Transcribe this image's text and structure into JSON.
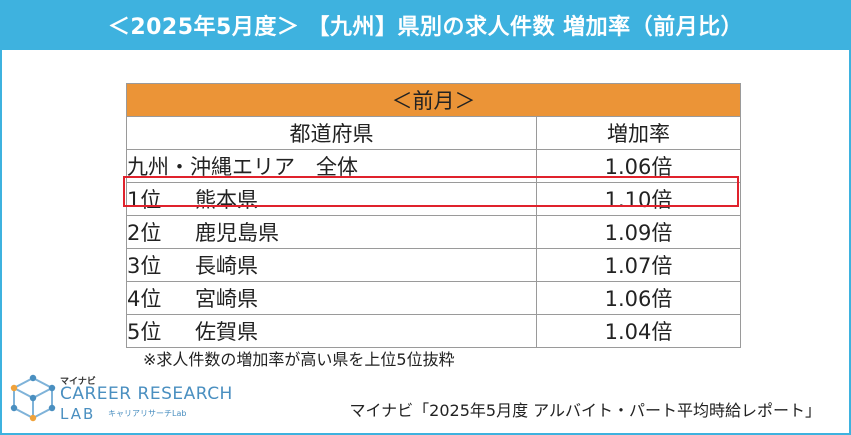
{
  "title": "＜2025年5月度＞ 【九州】県別の求人件数 増加率（前月比）",
  "chart_data": {
    "type": "table",
    "section_label": "＜前月＞",
    "columns": [
      "都道府県",
      "増加率"
    ],
    "rows": [
      {
        "rank": "",
        "prefecture": "九州・沖縄エリア　全体",
        "rate": "1.06倍",
        "value": 1.06,
        "highlighted": false
      },
      {
        "rank": "1位",
        "prefecture": "熊本県",
        "rate": "1.10倍",
        "value": 1.1,
        "highlighted": true
      },
      {
        "rank": "2位",
        "prefecture": "鹿児島県",
        "rate": "1.09倍",
        "value": 1.09,
        "highlighted": false
      },
      {
        "rank": "3位",
        "prefecture": "長崎県",
        "rate": "1.07倍",
        "value": 1.07,
        "highlighted": false
      },
      {
        "rank": "4位",
        "prefecture": "宮崎県",
        "rate": "1.06倍",
        "value": 1.06,
        "highlighted": false
      },
      {
        "rank": "5位",
        "prefecture": "佐賀県",
        "rate": "1.04倍",
        "value": 1.04,
        "highlighted": false
      }
    ]
  },
  "note": "※求人件数の増加率が高い県を上位5位抜粋",
  "source": "マイナビ「2025年5月度 アルバイト・パート平均時給レポート」",
  "logo": {
    "kana": "マイナビ",
    "line1": "CAREER RESEARCH",
    "line2": "LAB",
    "sub": "キャリアリサーチLab",
    "icon": "cube-logo-icon"
  },
  "colors": {
    "title_bar": "#3eb2df",
    "section_header": "#eb9437",
    "highlight_border": "#e0222c"
  }
}
